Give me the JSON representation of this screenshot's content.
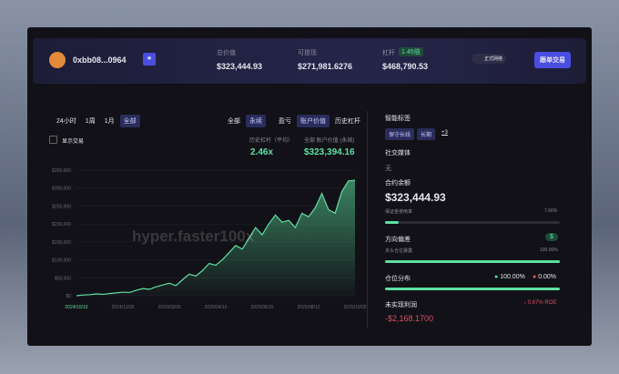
{
  "header": {
    "address": "0xbb08...0964",
    "stats": [
      {
        "label": "总价值",
        "value": "$323,444.93"
      },
      {
        "label": "可提现",
        "value": "$271,981.6276"
      },
      {
        "label": "杠杆",
        "badge": "1.45倍",
        "value": "$468,790.53"
      }
    ],
    "network": "正式网络",
    "button": "跟单交易"
  },
  "left": {
    "time_tabs": [
      "24小时",
      "1周",
      "1月",
      "全部"
    ],
    "scope_tabs": [
      "全部",
      "永续"
    ],
    "metric_tabs": [
      "盈亏",
      "账户价值",
      "历史杠杆"
    ],
    "show_trades": "显示交易",
    "avg_leverage_label": "历史杠杆（平均）",
    "avg_leverage": "2.46x",
    "value_label": "全部 账户价值 (永续)",
    "value": "$323,394.16",
    "watermark": "hyper.faster100x"
  },
  "chart_data": {
    "type": "area",
    "color": "#5ee0a0",
    "values": [
      0,
      2000,
      3000,
      5000,
      4000,
      6000,
      8000,
      10000,
      9000,
      15000,
      20000,
      18000,
      25000,
      30000,
      35000,
      28000,
      45000,
      60000,
      55000,
      70000,
      90000,
      85000,
      100000,
      120000,
      140000,
      130000,
      160000,
      190000,
      170000,
      200000,
      225000,
      205000,
      210000,
      190000,
      230000,
      220000,
      245000,
      285000,
      240000,
      230000,
      290000,
      320000,
      322000
    ],
    "x_labels": [
      "2024/10/10",
      "2024/12/26",
      "2025/03/05",
      "2025/04/16",
      "2025/06/15",
      "2025/08/12",
      "2025/10/02"
    ],
    "ylim": [
      0,
      350000
    ],
    "yticks": [
      {
        "value": 0,
        "label": "$0"
      },
      {
        "value": 50000,
        "label": "$50,000"
      },
      {
        "value": 100000,
        "label": "$100,000"
      },
      {
        "value": 150000,
        "label": "$150,000"
      },
      {
        "value": 200000,
        "label": "$200,000"
      },
      {
        "value": 250000,
        "label": "$250,000"
      },
      {
        "value": 300000,
        "label": "$300,000"
      },
      {
        "value": 350000,
        "label": "$350,000"
      }
    ],
    "grid": true
  },
  "right": {
    "tags_title": "智能标签",
    "tags": [
      "保守长线",
      "长期",
      "+3"
    ],
    "social_title": "社交媒体",
    "social": "无",
    "balance_title": "合约余额",
    "balance": "$323,444.93",
    "margin_label": "保证金使用率",
    "margin": 7.66,
    "margin_text": "7.66%",
    "bias_title": "方向偏差",
    "bias_icon": "$",
    "long_label": "多头仓位暴露",
    "long_text": "100.00%",
    "long": 100,
    "dist_title": "仓位分布",
    "dist_long": "100.00%",
    "dist_short": "0.00%",
    "pnl_title": "未实现利润",
    "roe": "↓ 0.67% ROE",
    "pnl": "-$2,168.1700"
  }
}
